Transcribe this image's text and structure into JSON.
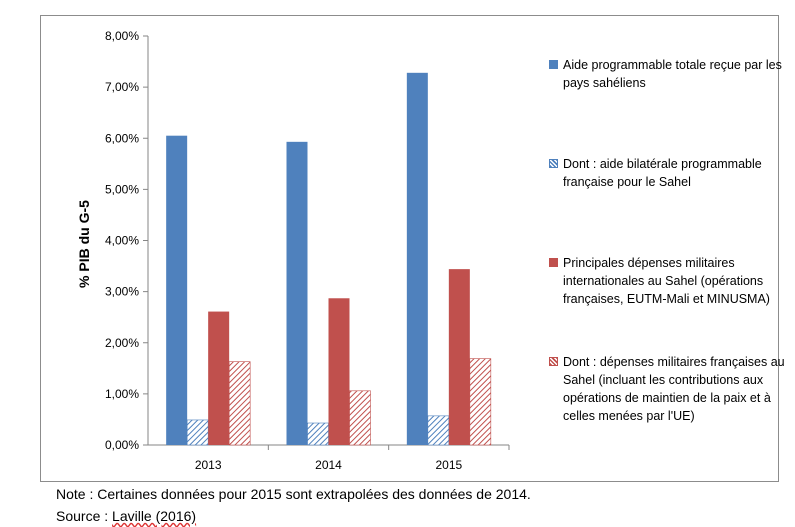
{
  "chart_data": {
    "type": "bar",
    "ylabel": "% PIB du G-5",
    "ylim": [
      0,
      8
    ],
    "y_ticks": [
      "0,00%",
      "1,00%",
      "2,00%",
      "3,00%",
      "4,00%",
      "5,00%",
      "6,00%",
      "7,00%",
      "8,00%"
    ],
    "y_tick_values": [
      0,
      1,
      2,
      3,
      4,
      5,
      6,
      7,
      8
    ],
    "categories": [
      "2013",
      "2014",
      "2015"
    ],
    "grid": false,
    "legend_position": "right",
    "series": [
      {
        "name": "Aide programmable totale reçue par les pays sahéliens",
        "values": [
          6.05,
          5.93,
          7.28
        ],
        "color": "#4f81bd",
        "pattern": "solid"
      },
      {
        "name": "Dont : aide bilatérale programmable française pour le Sahel",
        "values": [
          0.49,
          0.43,
          0.57
        ],
        "color": "#4f81bd",
        "pattern": "hatched"
      },
      {
        "name": "Principales dépenses militaires internationales au Sahel (opérations françaises, EUTM-Mali et MINUSMA)",
        "values": [
          2.61,
          2.87,
          3.44
        ],
        "color": "#c0504d",
        "pattern": "solid"
      },
      {
        "name": "Dont : dépenses militaires françaises au Sahel (incluant les contributions aux opérations de maintien de la paix et à celles menées par l'UE)",
        "values": [
          1.63,
          1.06,
          1.69
        ],
        "color": "#c0504d",
        "pattern": "hatched"
      }
    ]
  },
  "footer": {
    "note": "Note : Certaines données pour 2015 sont extrapolées des données de 2014.",
    "source_prefix": "Source : ",
    "source_link": "Laville (2016)"
  }
}
